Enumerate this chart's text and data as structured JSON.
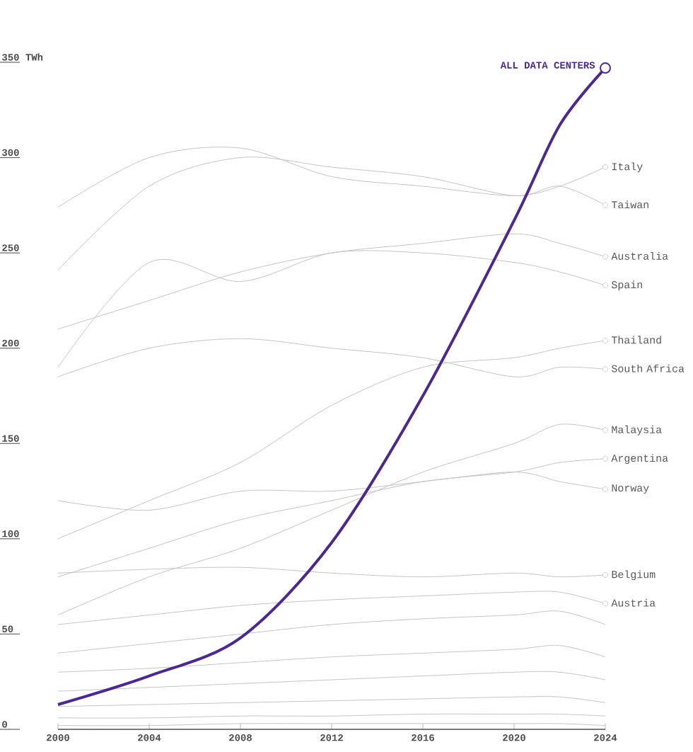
{
  "chart_data": {
    "type": "line",
    "x": [
      2000,
      2004,
      2008,
      2012,
      2016,
      2020,
      2022,
      2024
    ],
    "xlim": [
      2000,
      2024
    ],
    "xticks": [
      2000,
      2004,
      2008,
      2012,
      2016,
      2020,
      2024
    ],
    "ylim": [
      0,
      350
    ],
    "yticks": [
      0,
      50,
      100,
      150,
      200,
      250,
      300,
      {
        "value": 350,
        "label": "350 TWh"
      }
    ],
    "series": [
      {
        "name": "Italy",
        "color": "#c4c4c4",
        "values": [
          274,
          300,
          305,
          290,
          285,
          280,
          285,
          295
        ]
      },
      {
        "name": "Taiwan",
        "color": "#c4c4c4",
        "values": [
          241,
          285,
          300,
          295,
          290,
          280,
          285,
          275
        ]
      },
      {
        "name": "Australia",
        "color": "#c4c4c4",
        "values": [
          210,
          225,
          240,
          250,
          255,
          260,
          255,
          248
        ]
      },
      {
        "name": "Spain",
        "color": "#c4c4c4",
        "values": [
          190,
          245,
          235,
          250,
          250,
          245,
          240,
          233
        ]
      },
      {
        "name": "Thailand",
        "color": "#c4c4c4",
        "values": [
          100,
          120,
          140,
          170,
          190,
          195,
          200,
          204
        ]
      },
      {
        "name": "South Africa",
        "color": "#c4c4c4",
        "values": [
          185,
          200,
          205,
          200,
          195,
          185,
          190,
          189
        ]
      },
      {
        "name": "Malaysia",
        "color": "#c4c4c4",
        "values": [
          60,
          80,
          95,
          115,
          135,
          150,
          160,
          157
        ]
      },
      {
        "name": "Argentina",
        "color": "#c4c4c4",
        "values": [
          80,
          95,
          110,
          120,
          130,
          135,
          140,
          142
        ]
      },
      {
        "name": "Norway",
        "color": "#c4c4c4",
        "values": [
          120,
          115,
          125,
          125,
          130,
          135,
          130,
          126
        ]
      },
      {
        "name": "Belgium",
        "color": "#c4c4c4",
        "values": [
          82,
          84,
          85,
          82,
          80,
          82,
          80,
          81
        ]
      },
      {
        "name": "Austria",
        "color": "#c4c4c4",
        "values": [
          55,
          60,
          65,
          68,
          70,
          72,
          72,
          66
        ]
      },
      {
        "color": "#c4c4c4",
        "values": [
          40,
          45,
          50,
          55,
          58,
          60,
          62,
          55
        ]
      },
      {
        "color": "#c4c4c4",
        "values": [
          30,
          32,
          35,
          38,
          40,
          42,
          44,
          38
        ]
      },
      {
        "color": "#c4c4c4",
        "values": [
          20,
          22,
          24,
          26,
          28,
          30,
          30,
          26
        ]
      },
      {
        "color": "#c4c4c4",
        "values": [
          12,
          13,
          14,
          15,
          16,
          17,
          17,
          14
        ]
      },
      {
        "color": "#c4c4c4",
        "values": [
          6,
          6,
          7,
          7,
          8,
          8,
          8,
          7
        ]
      },
      {
        "color": "#c4c4c4",
        "values": [
          2,
          2,
          3,
          3,
          3,
          3,
          3,
          2
        ]
      },
      {
        "name": "ALL DATA CENTERS",
        "color": "#4b2a8c",
        "values": [
          13,
          28,
          48,
          98,
          175,
          267,
          317,
          347
        ]
      }
    ]
  }
}
